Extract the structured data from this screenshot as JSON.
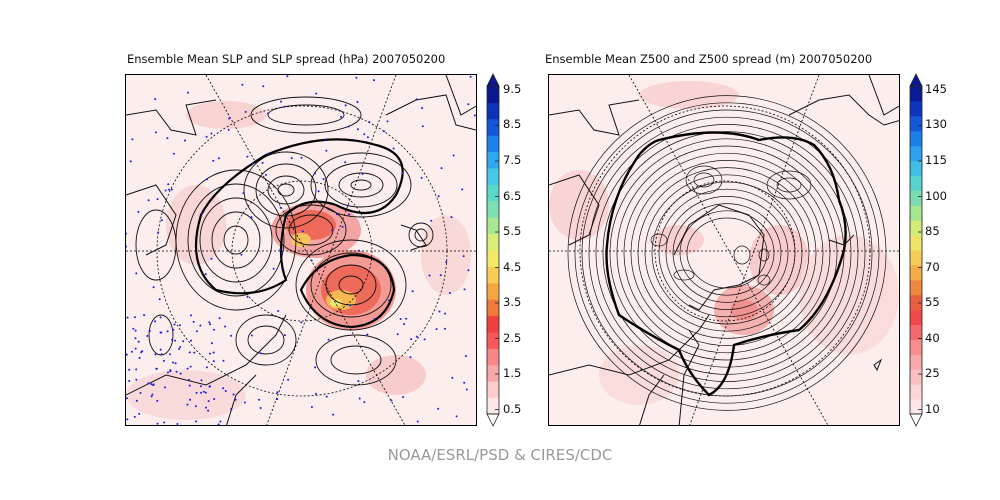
{
  "panels": [
    {
      "title": "Ensemble Mean SLP and SLP spread (hPa) 2007050200",
      "variable": "SLP",
      "colorbar": {
        "ticks": [
          "9.5",
          "8.5",
          "7.5",
          "6.5",
          "5.5",
          "4.5",
          "3.5",
          "2.5",
          "1.5",
          "0.5"
        ],
        "colors": [
          "#fde6e6",
          "#fbcccc",
          "#f9a8a8",
          "#f78686",
          "#f45a5a",
          "#ef3f3f",
          "#f07a3a",
          "#f6a640",
          "#f8cc55",
          "#f2e865",
          "#d8ee78",
          "#a8e890",
          "#7ee0b0",
          "#5ad8cc",
          "#48c8e6",
          "#30a8f0",
          "#1a82e8",
          "#1258d8",
          "#0c32b8",
          "#0a1890"
        ]
      }
    },
    {
      "title": "Ensemble Mean Z500 and Z500 spread (m) 2007050200",
      "variable": "Z500",
      "colorbar": {
        "ticks": [
          "145",
          "130",
          "115",
          "100",
          "85",
          "70",
          "55",
          "40",
          "25",
          "10"
        ],
        "colors": [
          "#fde6e6",
          "#fbd6d6",
          "#fac0c0",
          "#f8a8a8",
          "#f68e8e",
          "#f46a6a",
          "#ee4a4a",
          "#e86040",
          "#f08840",
          "#f6ac48",
          "#f8cc58",
          "#f0e468",
          "#d2ec78",
          "#a6e68e",
          "#7cdcb0",
          "#58d2ce",
          "#40bee6",
          "#2ea0f0",
          "#1c7ee8",
          "#1458d8",
          "#0c34bc",
          "#0a1a94"
        ]
      }
    }
  ],
  "credit": "NOAA/ESRL/PSD & CIRES/CDC"
}
